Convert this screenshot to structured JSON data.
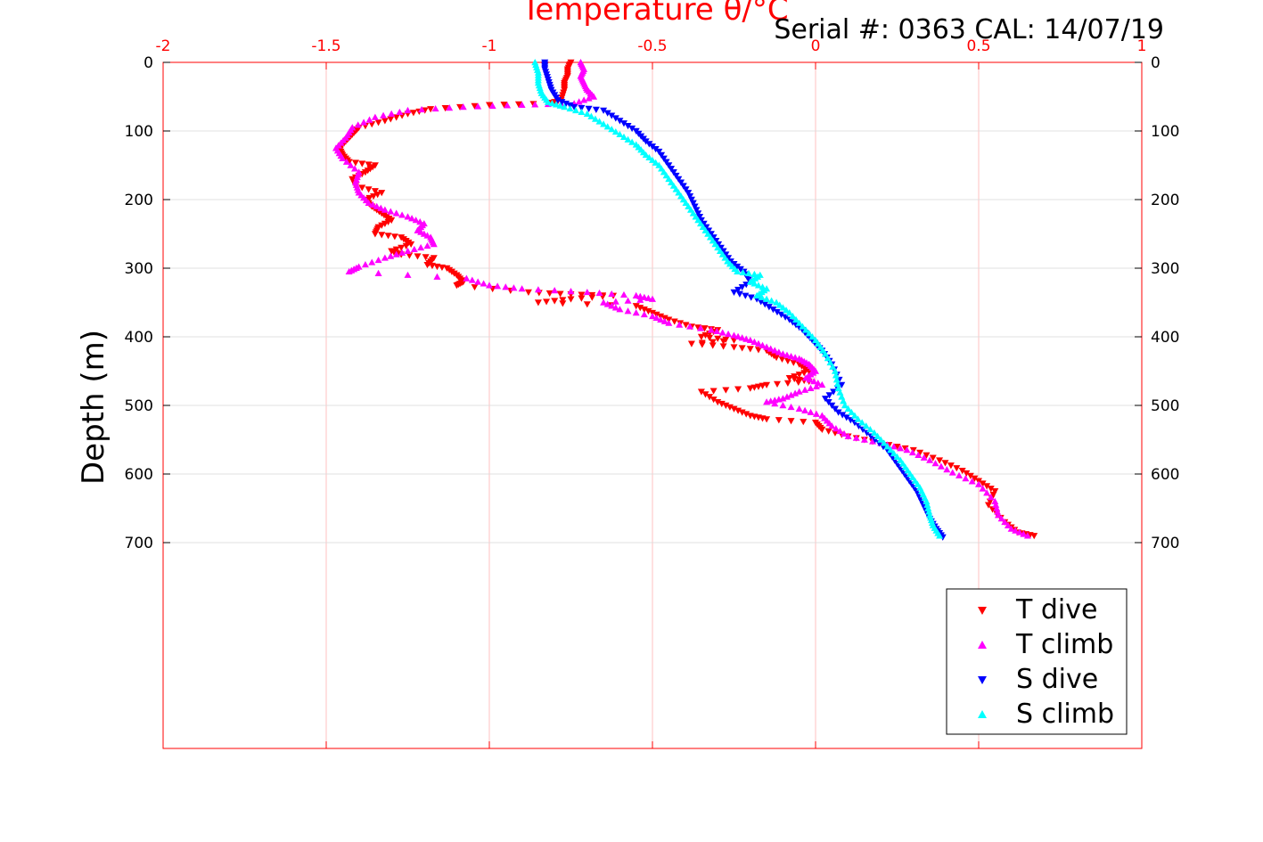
{
  "chart_data": {
    "type": "scatter",
    "title": "Temperature θ/°C",
    "annotation": "Serial #: 0363  CAL: 14/07/19",
    "ylabel": "Depth (m)",
    "xlim": [
      -2,
      1
    ],
    "ylim": [
      0,
      1000
    ],
    "y_reversed": true,
    "x_ticks": [
      "-2",
      "-1.5",
      "-1",
      "-0.5",
      "0",
      "0.5",
      "1"
    ],
    "y_ticks": [
      "0",
      "100",
      "200",
      "300",
      "400",
      "500",
      "600",
      "700"
    ],
    "grid": true,
    "legend_position": "bottom-right",
    "colors": {
      "axis": "#ff0000",
      "grid": "#d9d9d9"
    },
    "series": [
      {
        "name": "T dive",
        "color": "#ff0000",
        "marker": "triangle-down",
        "points": [
          [
            -0.75,
            0
          ],
          [
            -0.76,
            10
          ],
          [
            -0.76,
            20
          ],
          [
            -0.77,
            30
          ],
          [
            -0.77,
            40
          ],
          [
            -0.78,
            55
          ],
          [
            -0.82,
            60
          ],
          [
            -1.0,
            62
          ],
          [
            -1.18,
            68
          ],
          [
            -1.25,
            75
          ],
          [
            -1.32,
            85
          ],
          [
            -1.4,
            95
          ],
          [
            -1.42,
            105
          ],
          [
            -1.44,
            115
          ],
          [
            -1.46,
            125
          ],
          [
            -1.45,
            135
          ],
          [
            -1.43,
            145
          ],
          [
            -1.35,
            150
          ],
          [
            -1.38,
            160
          ],
          [
            -1.42,
            170
          ],
          [
            -1.41,
            180
          ],
          [
            -1.33,
            190
          ],
          [
            -1.38,
            200
          ],
          [
            -1.36,
            210
          ],
          [
            -1.33,
            220
          ],
          [
            -1.3,
            230
          ],
          [
            -1.34,
            240
          ],
          [
            -1.35,
            250
          ],
          [
            -1.27,
            255
          ],
          [
            -1.24,
            265
          ],
          [
            -1.3,
            275
          ],
          [
            -1.27,
            280
          ],
          [
            -1.17,
            285
          ],
          [
            -1.19,
            295
          ],
          [
            -1.13,
            300
          ],
          [
            -1.1,
            310
          ],
          [
            -1.08,
            320
          ],
          [
            -1.1,
            325
          ],
          [
            -0.88,
            335
          ],
          [
            -0.75,
            338
          ],
          [
            -0.62,
            340
          ],
          [
            -0.75,
            345
          ],
          [
            -0.85,
            350
          ],
          [
            -0.55,
            355
          ],
          [
            -0.5,
            365
          ],
          [
            -0.45,
            375
          ],
          [
            -0.38,
            385
          ],
          [
            -0.3,
            390
          ],
          [
            -0.35,
            400
          ],
          [
            -0.25,
            405
          ],
          [
            -0.38,
            410
          ],
          [
            -0.25,
            415
          ],
          [
            -0.15,
            420
          ],
          [
            -0.12,
            430
          ],
          [
            -0.05,
            440
          ],
          [
            -0.02,
            450
          ],
          [
            -0.08,
            460
          ],
          [
            -0.02,
            465
          ],
          [
            -0.15,
            470
          ],
          [
            -0.2,
            475
          ],
          [
            -0.35,
            480
          ],
          [
            -0.3,
            495
          ],
          [
            -0.25,
            505
          ],
          [
            -0.2,
            515
          ],
          [
            -0.15,
            520
          ],
          [
            0.0,
            525
          ],
          [
            0.02,
            535
          ],
          [
            0.1,
            545
          ],
          [
            0.2,
            555
          ],
          [
            0.3,
            565
          ],
          [
            0.38,
            580
          ],
          [
            0.45,
            595
          ],
          [
            0.5,
            610
          ],
          [
            0.55,
            625
          ],
          [
            0.53,
            645
          ],
          [
            0.58,
            670
          ],
          [
            0.62,
            685
          ],
          [
            0.67,
            690
          ]
        ]
      },
      {
        "name": "T climb",
        "color": "#ff00ff",
        "marker": "triangle-up",
        "points": [
          [
            -0.72,
            0
          ],
          [
            -0.71,
            10
          ],
          [
            -0.72,
            20
          ],
          [
            -0.71,
            30
          ],
          [
            -0.7,
            40
          ],
          [
            -0.68,
            50
          ],
          [
            -0.74,
            60
          ],
          [
            -0.9,
            62
          ],
          [
            -1.08,
            65
          ],
          [
            -1.25,
            70
          ],
          [
            -1.35,
            80
          ],
          [
            -1.42,
            95
          ],
          [
            -1.44,
            110
          ],
          [
            -1.47,
            125
          ],
          [
            -1.45,
            140
          ],
          [
            -1.4,
            160
          ],
          [
            -1.41,
            175
          ],
          [
            -1.4,
            190
          ],
          [
            -1.37,
            205
          ],
          [
            -1.32,
            215
          ],
          [
            -1.25,
            225
          ],
          [
            -1.2,
            235
          ],
          [
            -1.22,
            245
          ],
          [
            -1.18,
            255
          ],
          [
            -1.17,
            265
          ],
          [
            -1.25,
            275
          ],
          [
            -1.32,
            285
          ],
          [
            -1.4,
            298
          ],
          [
            -1.43,
            305
          ],
          [
            -1.07,
            315
          ],
          [
            -1.0,
            325
          ],
          [
            -0.9,
            330
          ],
          [
            -0.7,
            335
          ],
          [
            -0.55,
            340
          ],
          [
            -0.5,
            345
          ],
          [
            -0.65,
            350
          ],
          [
            -0.6,
            360
          ],
          [
            -0.5,
            370
          ],
          [
            -0.45,
            380
          ],
          [
            -0.32,
            390
          ],
          [
            -0.25,
            398
          ],
          [
            -0.2,
            405
          ],
          [
            -0.15,
            415
          ],
          [
            -0.1,
            425
          ],
          [
            -0.05,
            432
          ],
          [
            -0.02,
            440
          ],
          [
            0.0,
            450
          ],
          [
            -0.03,
            460
          ],
          [
            0.02,
            470
          ],
          [
            -0.05,
            480
          ],
          [
            -0.1,
            490
          ],
          [
            -0.15,
            495
          ],
          [
            -0.05,
            505
          ],
          [
            0.02,
            515
          ],
          [
            0.05,
            530
          ],
          [
            0.1,
            545
          ],
          [
            0.2,
            555
          ],
          [
            0.28,
            565
          ],
          [
            0.35,
            580
          ],
          [
            0.42,
            598
          ],
          [
            0.5,
            615
          ],
          [
            0.55,
            640
          ],
          [
            0.56,
            660
          ],
          [
            0.6,
            680
          ],
          [
            0.65,
            690
          ]
        ]
      },
      {
        "name": "S dive",
        "color": "#0000ff",
        "marker": "triangle-down",
        "points": [
          [
            -0.83,
            0
          ],
          [
            -0.83,
            10
          ],
          [
            -0.82,
            25
          ],
          [
            -0.81,
            40
          ],
          [
            -0.79,
            55
          ],
          [
            -0.74,
            65
          ],
          [
            -0.65,
            70
          ],
          [
            -0.6,
            85
          ],
          [
            -0.55,
            100
          ],
          [
            -0.52,
            115
          ],
          [
            -0.48,
            130
          ],
          [
            -0.45,
            150
          ],
          [
            -0.42,
            170
          ],
          [
            -0.39,
            190
          ],
          [
            -0.37,
            210
          ],
          [
            -0.35,
            230
          ],
          [
            -0.32,
            250
          ],
          [
            -0.29,
            270
          ],
          [
            -0.26,
            290
          ],
          [
            -0.22,
            305
          ],
          [
            -0.2,
            320
          ],
          [
            -0.25,
            335
          ],
          [
            -0.18,
            345
          ],
          [
            -0.13,
            360
          ],
          [
            -0.08,
            375
          ],
          [
            -0.04,
            390
          ],
          [
            -0.01,
            405
          ],
          [
            0.02,
            420
          ],
          [
            0.05,
            440
          ],
          [
            0.08,
            470
          ],
          [
            0.03,
            490
          ],
          [
            0.07,
            510
          ],
          [
            0.12,
            525
          ],
          [
            0.17,
            545
          ],
          [
            0.22,
            565
          ],
          [
            0.25,
            585
          ],
          [
            0.28,
            605
          ],
          [
            0.31,
            625
          ],
          [
            0.33,
            645
          ],
          [
            0.35,
            665
          ],
          [
            0.37,
            680
          ],
          [
            0.39,
            692
          ]
        ]
      },
      {
        "name": "S climb",
        "color": "#00ffff",
        "marker": "triangle-up",
        "points": [
          [
            -0.86,
            0
          ],
          [
            -0.85,
            15
          ],
          [
            -0.85,
            30
          ],
          [
            -0.84,
            45
          ],
          [
            -0.82,
            58
          ],
          [
            -0.77,
            65
          ],
          [
            -0.7,
            75
          ],
          [
            -0.65,
            90
          ],
          [
            -0.6,
            105
          ],
          [
            -0.55,
            120
          ],
          [
            -0.52,
            135
          ],
          [
            -0.48,
            150
          ],
          [
            -0.45,
            170
          ],
          [
            -0.42,
            190
          ],
          [
            -0.39,
            210
          ],
          [
            -0.36,
            230
          ],
          [
            -0.33,
            250
          ],
          [
            -0.3,
            270
          ],
          [
            -0.27,
            290
          ],
          [
            -0.24,
            305
          ],
          [
            -0.17,
            310
          ],
          [
            -0.2,
            320
          ],
          [
            -0.15,
            330
          ],
          [
            -0.18,
            340
          ],
          [
            -0.12,
            350
          ],
          [
            -0.08,
            365
          ],
          [
            -0.04,
            385
          ],
          [
            0.0,
            405
          ],
          [
            0.03,
            425
          ],
          [
            0.06,
            450
          ],
          [
            0.07,
            475
          ],
          [
            0.09,
            500
          ],
          [
            0.13,
            520
          ],
          [
            0.18,
            540
          ],
          [
            0.22,
            560
          ],
          [
            0.26,
            580
          ],
          [
            0.29,
            600
          ],
          [
            0.32,
            620
          ],
          [
            0.34,
            640
          ],
          [
            0.35,
            660
          ],
          [
            0.36,
            675
          ],
          [
            0.38,
            690
          ]
        ]
      }
    ]
  }
}
